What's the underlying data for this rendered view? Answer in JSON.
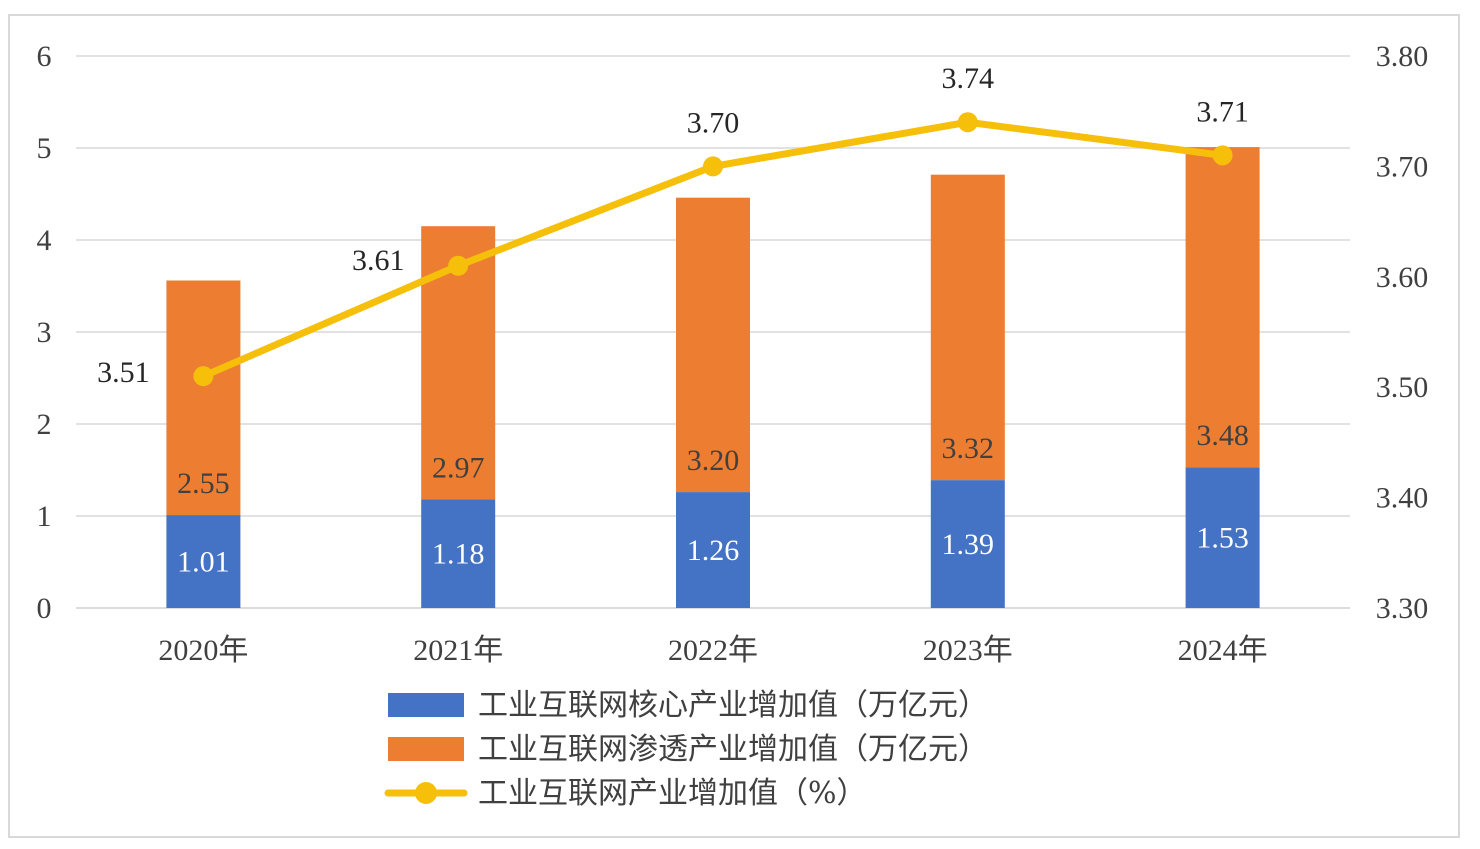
{
  "chart_data": {
    "type": "bar",
    "categories": [
      "2020年",
      "2021年",
      "2022年",
      "2023年",
      "2024年"
    ],
    "series": [
      {
        "name": "工业互联网核心产业增加值（万亿元）",
        "type": "bar",
        "axis": "left",
        "values": [
          1.01,
          1.18,
          1.26,
          1.39,
          1.53
        ],
        "color": "#4472C4",
        "labels": [
          "1.01",
          "1.18",
          "1.26",
          "1.39",
          "1.53"
        ],
        "label_color": "#ffffff"
      },
      {
        "name": "工业互联网渗透产业增加值（万亿元）",
        "type": "bar",
        "axis": "left",
        "values": [
          2.55,
          2.97,
          3.2,
          3.32,
          3.48
        ],
        "color": "#ED7D31",
        "labels": [
          "2.55",
          "2.97",
          "3.20",
          "3.32",
          "3.48"
        ],
        "label_color": "#404040"
      },
      {
        "name": "工业互联网产业增加值（%）",
        "type": "line",
        "axis": "right",
        "values": [
          3.51,
          3.61,
          3.7,
          3.74,
          3.71
        ],
        "color": "#F5BF0A",
        "labels": [
          "3.51",
          "3.61",
          "3.70",
          "3.74",
          "3.71"
        ],
        "label_color": "#262626"
      }
    ],
    "stacked": true,
    "y_left": {
      "ticks": [
        "0",
        "1",
        "2",
        "3",
        "4",
        "5",
        "6"
      ],
      "ylim": [
        0,
        6
      ]
    },
    "y_right": {
      "ticks": [
        "3.30",
        "3.40",
        "3.50",
        "3.60",
        "3.70",
        "3.80"
      ],
      "ylim": [
        3.3,
        3.8
      ]
    },
    "grid": true,
    "legend_position": "bottom"
  }
}
